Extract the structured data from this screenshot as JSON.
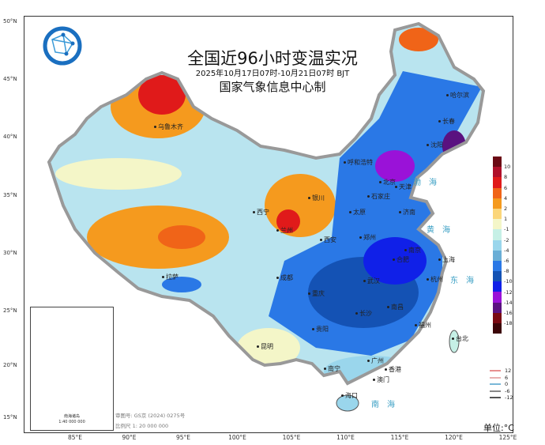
{
  "title": {
    "main": "全国近96小时变温实况",
    "time_range": "2025年10月17日07时-10月21日07时 BJT",
    "producer": "国家气象信息中心制"
  },
  "logo": {
    "icon": "globe-network-logo"
  },
  "lat_labels": [
    "50°N",
    "45°N",
    "40°N",
    "35°N",
    "30°N",
    "25°N",
    "20°N",
    "15°N"
  ],
  "lon_labels": [
    "85°E",
    "90°E",
    "95°E",
    "100°E",
    "105°E",
    "110°E",
    "115°E",
    "120°E",
    "125°E"
  ],
  "cities": [
    "乌鲁木齐",
    "拉萨",
    "西宁",
    "兰州",
    "银川",
    "呼和浩特",
    "北京",
    "天津",
    "石家庄",
    "太原",
    "济南",
    "郑州",
    "西安",
    "成都",
    "重庆",
    "武汉",
    "合肥",
    "南京",
    "上海",
    "杭州",
    "长沙",
    "南昌",
    "贵阳",
    "昆明",
    "南宁",
    "广州",
    "福州",
    "台北",
    "香港",
    "澳门",
    "海口",
    "哈尔滨",
    "长春",
    "沈阳"
  ],
  "seas": [
    "渤海",
    "黄海",
    "东海",
    "南海"
  ],
  "color_legend": {
    "labels": [
      "10",
      "8",
      "6",
      "4",
      "2",
      "1",
      "-1",
      "-2",
      "-4",
      "-6",
      "-8",
      "-10",
      "-12",
      "-14",
      "-16",
      "-18"
    ],
    "colors": [
      "#6b0a14",
      "#b0102a",
      "#e01a1a",
      "#f06418",
      "#f59a1e",
      "#fbd67a",
      "#f4f6c8",
      "#c6f0e6",
      "#9ad6ec",
      "#6aaed6",
      "#2a78e6",
      "#1452b4",
      "#1020e8",
      "#9a12d8",
      "#5a1280",
      "#7a0a12",
      "#3c0508"
    ]
  },
  "contour_legend": {
    "values": [
      "12",
      "6",
      "0",
      "-6",
      "-12"
    ],
    "colors": [
      "#e89090",
      "#e8b0b0",
      "#7ab8d8",
      "#888888",
      "#555555"
    ]
  },
  "unit": "单位:°C",
  "map_notes": {
    "approval": "审图号: GS京 (2024) 0275号",
    "scale": "比例尺 1: 20 000 000"
  },
  "inset": {
    "label": "南海诸岛",
    "scale": "1:40 000 000"
  }
}
